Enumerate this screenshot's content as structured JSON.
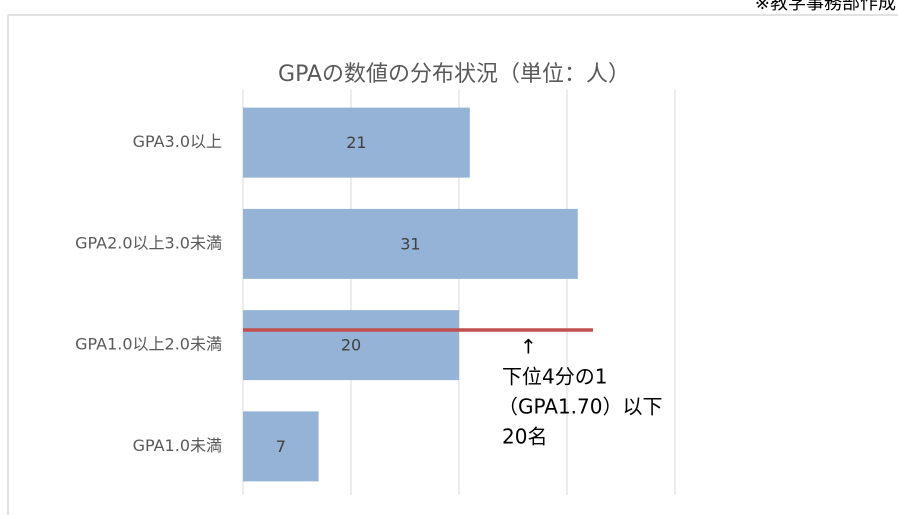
{
  "chart_data": {
    "type": "bar",
    "orientation": "horizontal",
    "title": "GPAの数値の分布状況（単位：人）",
    "note": "※教学事務部作成",
    "categories": [
      "GPA3.0以上",
      "GPA2.0以上3.0未満",
      "GPA1.0以上2.0未満",
      "GPA1.0未満"
    ],
    "values": [
      21,
      31,
      20,
      7
    ],
    "color": "#95b3d7",
    "xlim": [
      0,
      40
    ],
    "xticks": [
      0,
      10,
      20,
      30,
      40
    ],
    "grid": true,
    "annotation": [
      "↑",
      "下位4分の1",
      "（GPA1.70）以下",
      "20名"
    ]
  }
}
